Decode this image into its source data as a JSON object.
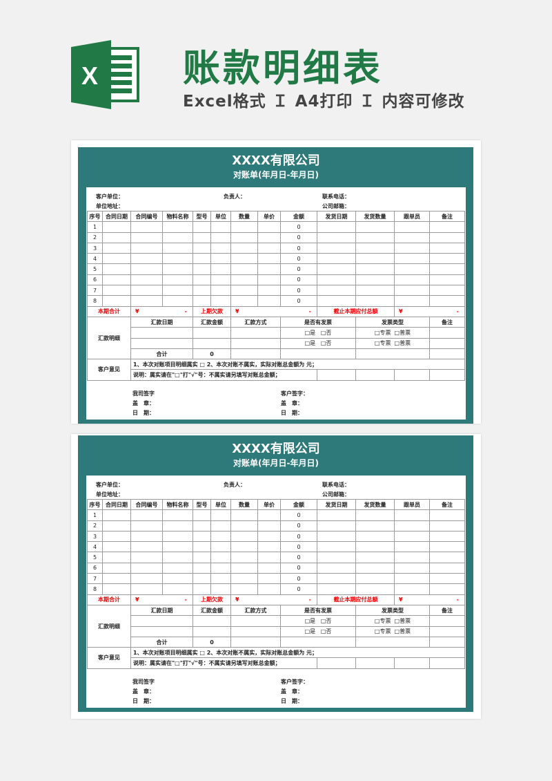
{
  "header": {
    "title": "账款明细表",
    "subtitle": "Excel格式 Ｉ A4打印 Ｉ 内容可修改",
    "logo_letter": "X",
    "accent": "#217a45",
    "sheet_color": "#2e7a7a"
  },
  "sheet": {
    "company": "XXXX有限公司",
    "statement": "对账单(年月日-年月日)",
    "info": {
      "customer": "客户单位：",
      "contact_person": "负责人：",
      "phone": "联系电话：",
      "address": "单位地址：",
      "email": "公司邮箱："
    },
    "columns": [
      "序号",
      "合同日期",
      "合同编号",
      "物料名称",
      "型号",
      "单位",
      "数量",
      "单价",
      "金额",
      "发货日期",
      "发货数量",
      "跟单员",
      "备注"
    ],
    "rows": [
      [
        "1",
        "0"
      ],
      [
        "2",
        "0"
      ],
      [
        "3",
        "0"
      ],
      [
        "4",
        "0"
      ],
      [
        "5",
        "0"
      ],
      [
        "6",
        "0"
      ],
      [
        "7",
        "0"
      ],
      [
        "8",
        "0"
      ]
    ],
    "summary": {
      "current_total": "本期合计",
      "yen": "¥",
      "dash": "-",
      "previous_debt": "上期欠款",
      "total_due": "截止本期应付总额"
    },
    "remit": {
      "label": "汇款明细",
      "headers": [
        "汇款日期",
        "汇款金额",
        "汇款方式",
        "是否有发票",
        "发票类型",
        "备注"
      ],
      "invoice_yes": "□是",
      "invoice_no": "□否",
      "type_special": "□专票",
      "type_normal": "□普票",
      "total_label": "合计",
      "total_value": "0"
    },
    "opinion": {
      "label": "客户意见",
      "line1": "1、本次对账项目明细属实 □     2、本次对账不属实，实际对账总金额为     元；",
      "line2": "说明：属实请在\"□\"打\"√\"号：不属实请另填写对账总金额；"
    },
    "signature": {
      "our_sign": "我司签字",
      "customer_sign": "客户签字：",
      "seal": "盖　章：",
      "date": "日　期："
    }
  },
  "sheets_count": 2
}
